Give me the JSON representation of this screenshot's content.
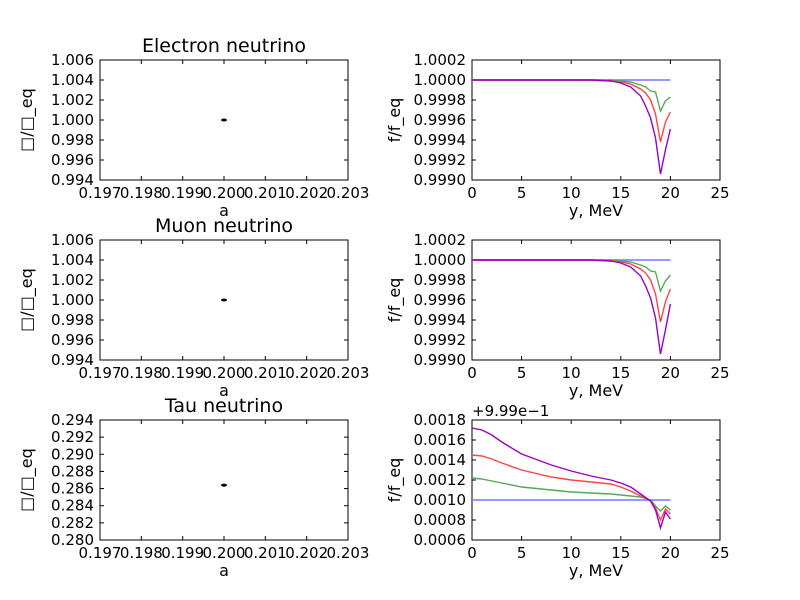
{
  "chart_data": [
    {
      "type": "scatter",
      "title": "Electron neutrino",
      "xlabel": "a",
      "ylabel": "□/□_eq",
      "xlim": [
        0.197,
        0.203
      ],
      "ylim": [
        0.994,
        1.006
      ],
      "xticks": [
        "0.197",
        "0.198",
        "0.199",
        "0.200",
        "0.201",
        "0.202",
        "0.203"
      ],
      "yticks": [
        "0.994",
        "0.996",
        "0.998",
        "1.000",
        "1.002",
        "1.004",
        "1.006"
      ],
      "points": [
        {
          "x": 0.2,
          "y": 1.0
        }
      ],
      "marker_color": "#000000"
    },
    {
      "type": "line",
      "title": "",
      "xlabel": "y, MeV",
      "ylabel": "f/f_eq",
      "xlim": [
        0,
        25
      ],
      "ylim": [
        0.999,
        1.0002
      ],
      "xticks": [
        "0",
        "5",
        "10",
        "15",
        "20",
        "25"
      ],
      "yticks": [
        "0.9990",
        "0.9992",
        "0.9994",
        "0.9996",
        "0.9998",
        "1.0000",
        "1.0002"
      ],
      "series": [
        {
          "color": "#7777ff",
          "x": [
            0,
            20
          ],
          "y": [
            1.0,
            1.0
          ]
        },
        {
          "color": "#55aa55",
          "x": [
            0,
            12,
            14,
            15,
            16,
            17,
            17.5,
            18,
            18.5,
            19,
            19.5,
            20
          ],
          "y": [
            1.0,
            1.0,
            1.0,
            0.99999,
            0.99998,
            0.99995,
            0.99993,
            0.99989,
            0.99988,
            0.99969,
            0.99979,
            0.99983
          ]
        },
        {
          "color": "#ff4444",
          "x": [
            0,
            12,
            14,
            15,
            16,
            17,
            17.5,
            18,
            18.5,
            19,
            19.5,
            20
          ],
          "y": [
            1.0,
            1.0,
            0.99999,
            0.99998,
            0.99996,
            0.99991,
            0.99987,
            0.9998,
            0.99966,
            0.99938,
            0.99958,
            0.99968
          ]
        },
        {
          "color": "#9900cc",
          "x": [
            0,
            12,
            14,
            15,
            16,
            17,
            17.5,
            18,
            18.5,
            19,
            19.5,
            20
          ],
          "y": [
            1.0,
            1.0,
            0.99999,
            0.99997,
            0.99993,
            0.99984,
            0.99974,
            0.99962,
            0.99942,
            0.99906,
            0.9993,
            0.99951
          ]
        }
      ]
    },
    {
      "type": "scatter",
      "title": "Muon neutrino",
      "xlabel": "a",
      "ylabel": "□/□_eq",
      "xlim": [
        0.197,
        0.203
      ],
      "ylim": [
        0.994,
        1.006
      ],
      "xticks": [
        "0.197",
        "0.198",
        "0.199",
        "0.200",
        "0.201",
        "0.202",
        "0.203"
      ],
      "yticks": [
        "0.994",
        "0.996",
        "0.998",
        "1.000",
        "1.002",
        "1.004",
        "1.006"
      ],
      "points": [
        {
          "x": 0.2,
          "y": 1.0
        }
      ],
      "marker_color": "#000000"
    },
    {
      "type": "line",
      "title": "",
      "xlabel": "y, MeV",
      "ylabel": "f/f_eq",
      "xlim": [
        0,
        25
      ],
      "ylim": [
        0.999,
        1.0002
      ],
      "xticks": [
        "0",
        "5",
        "10",
        "15",
        "20",
        "25"
      ],
      "yticks": [
        "0.9990",
        "0.9992",
        "0.9994",
        "0.9996",
        "0.9998",
        "1.0000",
        "1.0002"
      ],
      "series": [
        {
          "color": "#7777ff",
          "x": [
            0,
            20
          ],
          "y": [
            1.0,
            1.0
          ]
        },
        {
          "color": "#55aa55",
          "x": [
            0,
            12,
            14,
            15,
            16,
            17,
            17.5,
            18,
            18.5,
            19,
            19.5,
            20
          ],
          "y": [
            1.0,
            1.0,
            1.0,
            0.99999,
            0.99998,
            0.99995,
            0.99993,
            0.99989,
            0.99988,
            0.99969,
            0.99979,
            0.99985
          ]
        },
        {
          "color": "#ff4444",
          "x": [
            0,
            12,
            14,
            15,
            16,
            17,
            17.5,
            18,
            18.5,
            19,
            19.5,
            20
          ],
          "y": [
            1.0,
            1.0,
            0.99999,
            0.99998,
            0.99996,
            0.99991,
            0.99987,
            0.9998,
            0.99966,
            0.99938,
            0.99958,
            0.99971
          ]
        },
        {
          "color": "#9900cc",
          "x": [
            0,
            12,
            14,
            15,
            16,
            17,
            17.5,
            18,
            18.5,
            19,
            19.5,
            20
          ],
          "y": [
            1.0,
            1.0,
            0.99999,
            0.99997,
            0.99993,
            0.99984,
            0.99974,
            0.99962,
            0.99942,
            0.99906,
            0.9993,
            0.99956
          ]
        }
      ]
    },
    {
      "type": "scatter",
      "title": "Tau neutrino",
      "xlabel": "a",
      "ylabel": "□/□_eq",
      "xlim": [
        0.197,
        0.203
      ],
      "ylim": [
        0.28,
        0.294
      ],
      "xticks": [
        "0.197",
        "0.198",
        "0.199",
        "0.200",
        "0.201",
        "0.202",
        "0.203"
      ],
      "yticks": [
        "0.280",
        "0.282",
        "0.284",
        "0.286",
        "0.288",
        "0.290",
        "0.292",
        "0.294"
      ],
      "points": [
        {
          "x": 0.2,
          "y": 0.2864
        }
      ],
      "marker_color": "#000000"
    },
    {
      "type": "line",
      "title": "",
      "xlabel": "y, MeV",
      "ylabel": "f/f_eq",
      "offset_label": "+9.99e−1",
      "xlim": [
        0,
        25
      ],
      "ylim": [
        0.0006,
        0.0018
      ],
      "xticks": [
        "0",
        "5",
        "10",
        "15",
        "20",
        "25"
      ],
      "yticks": [
        "0.0006",
        "0.0008",
        "0.0010",
        "0.0012",
        "0.0014",
        "0.0016",
        "0.0018"
      ],
      "series": [
        {
          "color": "#7777ff",
          "x": [
            0,
            20
          ],
          "y": [
            0.001,
            0.001
          ]
        },
        {
          "color": "#55aa55",
          "x": [
            0,
            1,
            2,
            3,
            5,
            8,
            10,
            12,
            14,
            15,
            16,
            17,
            18,
            18.5,
            19,
            19.5,
            20
          ],
          "y": [
            0.00122,
            0.00121,
            0.00119,
            0.00117,
            0.00113,
            0.0011,
            0.00108,
            0.00107,
            0.00106,
            0.00105,
            0.00104,
            0.00103,
            0.001,
            0.00094,
            0.00089,
            0.00094,
            0.0009
          ]
        },
        {
          "color": "#ff4444",
          "x": [
            0,
            1,
            2,
            3,
            5,
            8,
            10,
            12,
            14,
            15,
            16,
            17,
            18,
            18.5,
            19,
            19.5,
            20
          ],
          "y": [
            0.00145,
            0.00144,
            0.00141,
            0.00137,
            0.0013,
            0.00123,
            0.0012,
            0.00118,
            0.00116,
            0.00113,
            0.00109,
            0.00104,
            0.00099,
            0.00092,
            0.0008,
            0.00091,
            0.00086
          ]
        },
        {
          "color": "#9900cc",
          "x": [
            0,
            1,
            2,
            3,
            5,
            8,
            10,
            12,
            14,
            15,
            16,
            17,
            18,
            18.5,
            19,
            19.5,
            20
          ],
          "y": [
            0.00172,
            0.0017,
            0.00165,
            0.00158,
            0.00146,
            0.00135,
            0.00129,
            0.00124,
            0.0012,
            0.00117,
            0.00113,
            0.00106,
            0.00099,
            0.0009,
            0.00072,
            0.00088,
            0.00081
          ]
        }
      ]
    }
  ]
}
